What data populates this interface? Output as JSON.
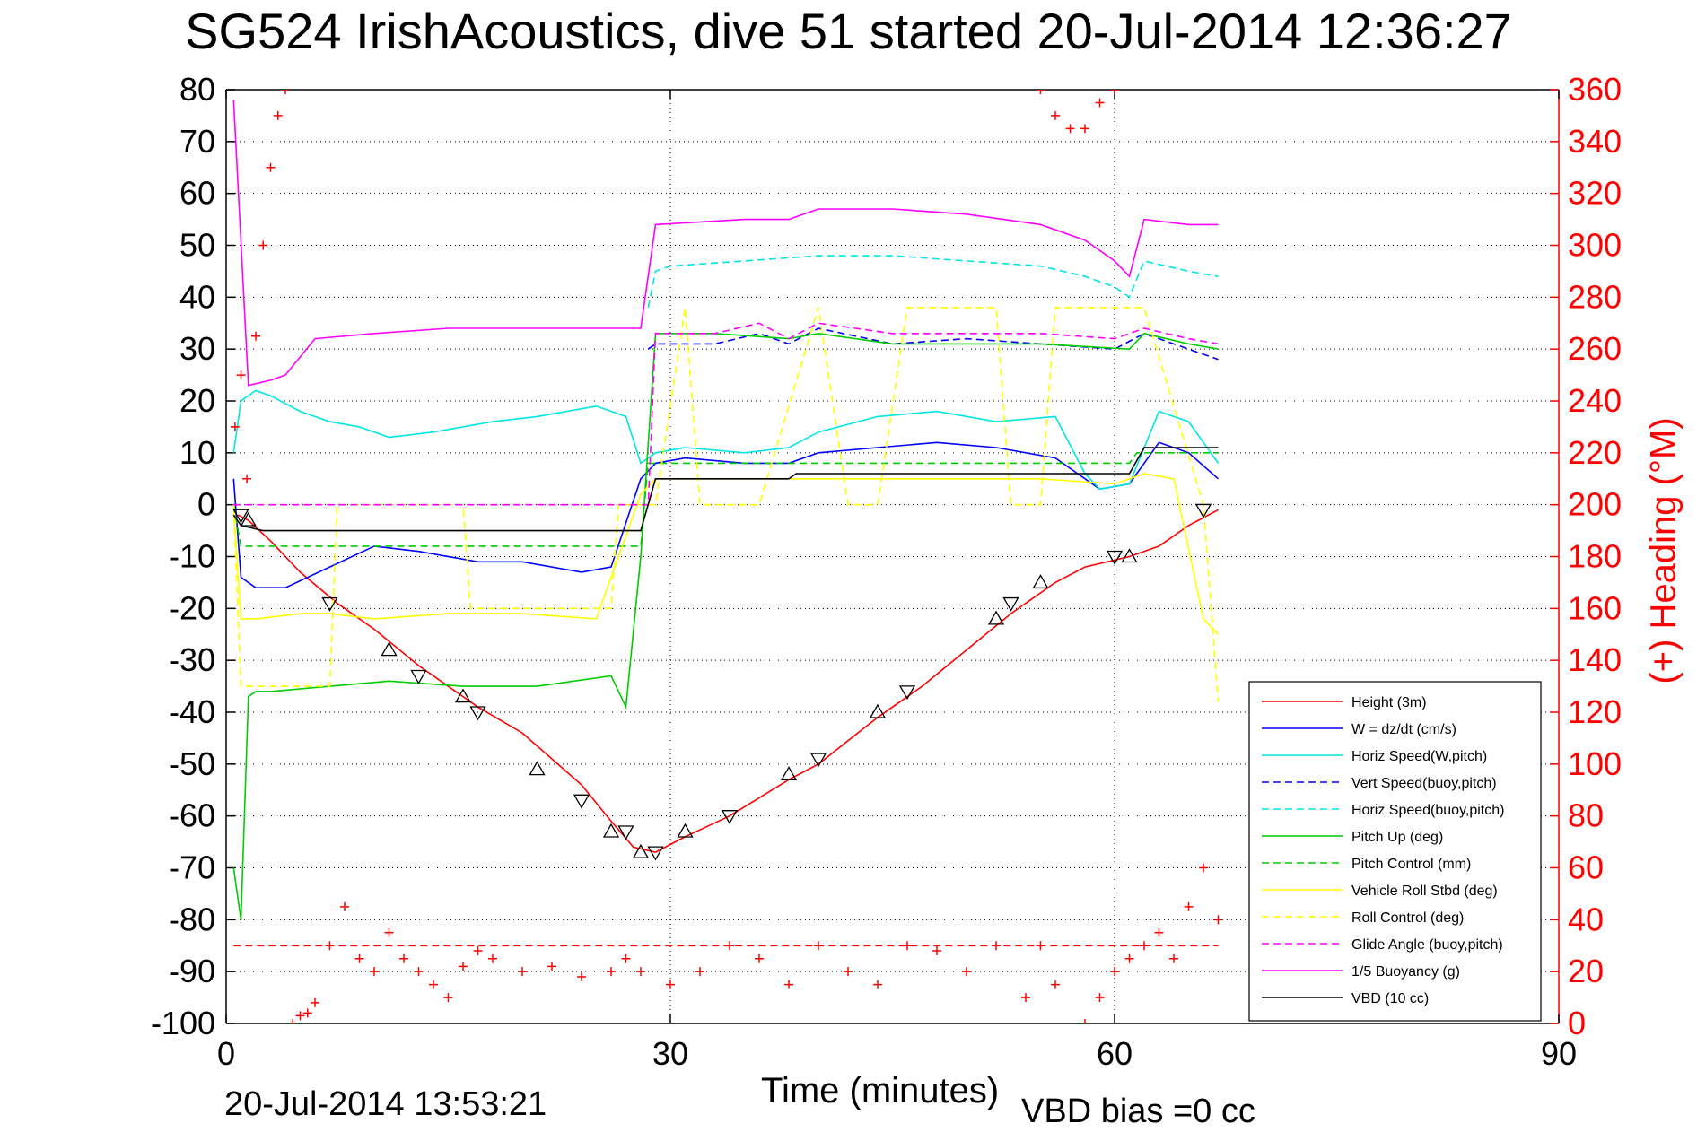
{
  "title": "SG524 IrishAcoustics, dive 51 started 20-Jul-2014 12:36:27",
  "footer": {
    "date": "20-Jul-2014 13:53:21",
    "vbd_bias": "VBD bias =0 cc"
  },
  "chart_data": {
    "type": "line",
    "xlabel": "Time (minutes)",
    "ylabel": "",
    "ylabel_right": "(+) Heading (°M)",
    "xlim": [
      0,
      90
    ],
    "ylim": [
      -100,
      80
    ],
    "ylim_right": [
      0,
      360
    ],
    "x_ticks": [
      0,
      30,
      60,
      90
    ],
    "y_ticks": [
      80,
      70,
      60,
      50,
      40,
      30,
      20,
      10,
      0,
      -10,
      -20,
      -30,
      -40,
      -50,
      -60,
      -70,
      -80,
      -90,
      -100
    ],
    "y_ticks_right": [
      360,
      340,
      320,
      300,
      280,
      260,
      240,
      220,
      200,
      180,
      160,
      140,
      120,
      100,
      80,
      60,
      40,
      20,
      0
    ],
    "grid": true,
    "legend_position": "bottom-right",
    "colors": {
      "axis_right": "#ff0000"
    },
    "series": [
      {
        "name": "Height (3m)",
        "color": "#ff0000",
        "style": "solid",
        "x": [
          0.8,
          1.5,
          3,
          5,
          7.5,
          10,
          13,
          17,
          20,
          24,
          26,
          27.5,
          29,
          31,
          34,
          38,
          40,
          44,
          47,
          50,
          53,
          56,
          58,
          61,
          63,
          65,
          67
        ],
        "y": [
          -2,
          -3,
          -7,
          -13,
          -19,
          -24,
          -31,
          -39,
          -44,
          -54,
          -61,
          -66,
          -67,
          -64,
          -60,
          -53,
          -50,
          -41,
          -35,
          -28,
          -21,
          -15,
          -12,
          -10,
          -8,
          -4,
          -1
        ]
      },
      {
        "name": "W = dz/dt (cm/s)",
        "color": "#0000ff",
        "style": "solid",
        "x": [
          0.5,
          1,
          2,
          4,
          7,
          10,
          13,
          17,
          20,
          24,
          26,
          28,
          29,
          31,
          35,
          38,
          40,
          44,
          48,
          52,
          56,
          59,
          61,
          63,
          65,
          67
        ],
        "y": [
          5,
          -14,
          -16,
          -16,
          -12,
          -8,
          -9,
          -11,
          -11,
          -13,
          -12,
          5,
          8,
          9,
          8,
          8,
          10,
          11,
          12,
          11,
          9,
          3,
          4,
          12,
          10,
          5
        ]
      },
      {
        "name": "Horiz Speed(W,pitch)",
        "color": "#00e5e5",
        "style": "solid",
        "x": [
          0.5,
          1,
          2,
          3,
          5,
          7,
          9,
          11,
          14,
          18,
          21,
          25,
          27,
          28,
          29,
          31,
          35,
          38,
          40,
          44,
          48,
          52,
          56,
          58,
          59,
          61,
          63,
          65,
          67
        ],
        "y": [
          10,
          20,
          22,
          21,
          18,
          16,
          15,
          13,
          14,
          16,
          17,
          19,
          17,
          8,
          10,
          11,
          10,
          11,
          14,
          17,
          18,
          16,
          17,
          6,
          3,
          4,
          18,
          16,
          8
        ]
      },
      {
        "name": "Vert Speed(buoy,pitch)",
        "color": "#0000ff",
        "style": "dashed",
        "x": [
          28.5,
          29,
          33,
          36,
          38,
          40,
          45,
          50,
          55,
          60,
          62,
          65,
          67
        ],
        "y": [
          30,
          31,
          31,
          33,
          31,
          34,
          31,
          32,
          31,
          30,
          33,
          30,
          28
        ]
      },
      {
        "name": "Horiz Speed(buoy,pitch)",
        "color": "#00e5e5",
        "style": "dashed",
        "x": [
          28.5,
          29,
          30,
          35,
          40,
          45,
          50,
          55,
          58,
          60,
          61,
          62,
          65,
          67
        ],
        "y": [
          38,
          45,
          46,
          47,
          48,
          48,
          47,
          46,
          44,
          42,
          40,
          47,
          45,
          44
        ]
      },
      {
        "name": "Pitch Up (deg)",
        "color": "#00cc00",
        "style": "solid",
        "x": [
          0.5,
          1,
          1.5,
          2,
          3,
          7,
          11,
          16,
          21,
          26,
          27,
          28,
          29,
          33,
          38,
          40,
          45,
          50,
          55,
          61,
          62,
          65,
          67
        ],
        "y": [
          -70,
          -80,
          -37,
          -36,
          -36,
          -35,
          -34,
          -35,
          -35,
          -33,
          -39,
          -10,
          33,
          33,
          32,
          33,
          31,
          31,
          31,
          30,
          33,
          31,
          30
        ]
      },
      {
        "name": "Pitch Control (mm)",
        "color": "#00cc00",
        "style": "dashed",
        "x": [
          0.5,
          1,
          28,
          28.5,
          61,
          61.5,
          67
        ],
        "y": [
          0,
          -8,
          -8,
          8,
          8,
          10,
          10
        ]
      },
      {
        "name": "Vehicle Roll Stbd (deg)",
        "color": "#ffff00",
        "style": "solid",
        "x": [
          0.5,
          1,
          2,
          5,
          7,
          10,
          15,
          20,
          25,
          28,
          29,
          35,
          40,
          45,
          50,
          55,
          60,
          62,
          64,
          66,
          67
        ],
        "y": [
          0,
          -22,
          -22,
          -21,
          -21,
          -22,
          -21,
          -21,
          -22,
          2,
          5,
          5,
          5,
          5,
          5,
          5,
          4,
          6,
          5,
          -22,
          -25
        ]
      },
      {
        "name": "Roll Control (deg)",
        "color": "#ffff00",
        "style": "dashed",
        "x": [
          0.5,
          1,
          7,
          7.5,
          16,
          16.5,
          26,
          26.5,
          29,
          31,
          32,
          36,
          40,
          42,
          44,
          46,
          52,
          53,
          55,
          56,
          62,
          66,
          67
        ],
        "y": [
          0,
          -35,
          -35,
          0,
          0,
          -20,
          -20,
          0,
          0,
          38,
          0,
          0,
          38,
          0,
          0,
          38,
          38,
          0,
          0,
          38,
          38,
          0,
          -38
        ]
      },
      {
        "name": "Glide Angle (buoy,pitch)",
        "color": "#ff00ff",
        "style": "dashed",
        "x": [
          0.5,
          28.5,
          29,
          33,
          36,
          38,
          40,
          45,
          50,
          55,
          60,
          62,
          65,
          67
        ],
        "y": [
          0,
          0,
          33,
          33,
          35,
          32,
          35,
          33,
          33,
          33,
          32,
          34,
          32,
          31
        ]
      },
      {
        "name": "1/5 Buoyancy (g)",
        "color": "#ff00ff",
        "style": "solid",
        "x": [
          0.5,
          1.5,
          3,
          4,
          6,
          10,
          15,
          20,
          25,
          28,
          29,
          35,
          38,
          40,
          45,
          50,
          55,
          58,
          60,
          61,
          62,
          65,
          67
        ],
        "y": [
          78,
          23,
          24,
          25,
          32,
          33,
          34,
          34,
          34,
          34,
          54,
          55,
          55,
          57,
          57,
          56,
          54,
          51,
          47,
          44,
          55,
          54,
          54
        ]
      },
      {
        "name": "VBD (10 cc)",
        "color": "#000000",
        "style": "solid",
        "x": [
          0.5,
          1,
          2.5,
          28,
          29,
          38,
          38.5,
          61,
          62,
          67
        ],
        "y": [
          -2,
          -4,
          -5,
          -5,
          5,
          5,
          6,
          6,
          11,
          11
        ]
      },
      {
        "name": "",
        "color": "#ff0000",
        "style": "markers-plus",
        "axis": "right",
        "x": [
          0.6,
          1,
          1.4,
          2,
          2.5,
          3,
          3.5,
          4,
          4.5,
          5,
          5.5,
          6,
          7,
          8,
          9,
          10,
          11,
          12,
          13,
          14,
          15,
          16,
          17,
          18,
          20,
          22,
          24,
          26,
          27,
          28,
          30,
          32,
          34,
          36,
          38,
          40,
          42,
          44,
          46,
          48,
          50,
          52,
          54,
          55,
          56,
          58,
          59,
          60,
          61,
          62,
          63,
          64,
          65,
          66,
          67
        ],
        "y": [
          230,
          250,
          210,
          265,
          300,
          330,
          350,
          360,
          0,
          3,
          4,
          8,
          30,
          45,
          25,
          20,
          35,
          25,
          20,
          15,
          10,
          22,
          28,
          25,
          20,
          22,
          18,
          20,
          25,
          20,
          15,
          20,
          30,
          25,
          15,
          30,
          20,
          15,
          30,
          28,
          20,
          30,
          10,
          30,
          15,
          0,
          10,
          20,
          25,
          30,
          35,
          25,
          45,
          60,
          40
        ]
      },
      {
        "name": "",
        "color": "#ff0000",
        "style": "markers-plus",
        "axis": "right",
        "x": [
          55,
          56,
          57,
          58,
          59,
          60
        ],
        "y": [
          360,
          350,
          345,
          345,
          355,
          360
        ]
      },
      {
        "name": "",
        "color": "#ff0000",
        "style": "dashed",
        "axis": "right",
        "x": [
          0.5,
          67
        ],
        "y": [
          30,
          30
        ]
      }
    ],
    "markers_triangles": {
      "x": [
        1,
        1.5,
        7,
        11,
        13,
        16,
        17,
        21,
        24,
        26,
        27,
        28,
        29,
        31,
        34,
        38,
        40,
        44,
        46,
        52,
        53,
        55,
        60,
        61,
        66
      ],
      "y": [
        -2,
        -3,
        -19,
        -28,
        -33,
        -37,
        -40,
        -51,
        -57,
        -63,
        -63,
        -67,
        -67,
        -63,
        -60,
        -52,
        -49,
        -40,
        -36,
        -22,
        -19,
        -15,
        -10,
        -10,
        -1
      ]
    }
  }
}
